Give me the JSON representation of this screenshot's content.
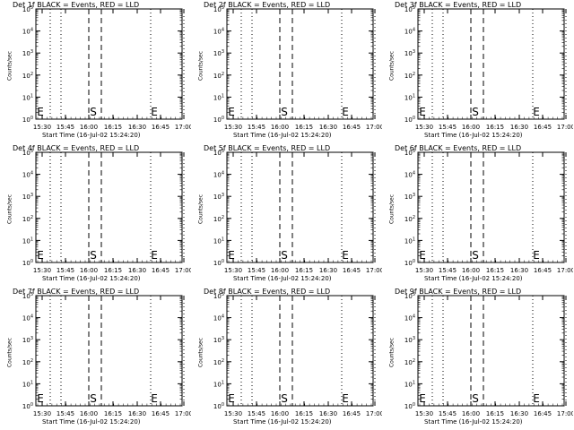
{
  "chart_data": [
    {
      "type": "line",
      "title": "Det 1f BLACK = Events, RED = LLD",
      "xlabel": "Start Time (16-Jul-02 15:24:20)",
      "ylabel": "Counts/sec",
      "xticks": [
        "15:30",
        "15:45",
        "16:00",
        "16:15",
        "16:30",
        "16:45",
        "17:00"
      ],
      "yticks": [
        "10^0",
        "10^1",
        "10^2",
        "10^3",
        "10^4",
        "10^5"
      ],
      "ylim": [
        1,
        100000
      ],
      "scale": "log",
      "markers": [
        "E",
        "S",
        "E"
      ],
      "series": []
    },
    {
      "type": "line",
      "title": "Det 2f BLACK = Events, RED = LLD",
      "xlabel": "Start Time (16-Jul-02 15:24:20)",
      "ylabel": "Counts/sec",
      "xticks": [
        "15:30",
        "15:45",
        "16:00",
        "16:15",
        "16:30",
        "16:45",
        "17:00"
      ],
      "yticks": [
        "10^0",
        "10^1",
        "10^2",
        "10^3",
        "10^4",
        "10^5"
      ],
      "ylim": [
        1,
        100000
      ],
      "scale": "log",
      "markers": [
        "E",
        "S",
        "E"
      ],
      "series": []
    },
    {
      "type": "line",
      "title": "Det 3f BLACK = Events, RED = LLD",
      "xlabel": "Start Time (16-Jul-02 15:24:20)",
      "ylabel": "Counts/sec",
      "xticks": [
        "15:30",
        "15:45",
        "16:00",
        "16:15",
        "16:30",
        "16:45",
        "17:00"
      ],
      "yticks": [
        "10^0",
        "10^1",
        "10^2",
        "10^3",
        "10^4",
        "10^5"
      ],
      "ylim": [
        1,
        100000
      ],
      "scale": "log",
      "markers": [
        "E",
        "S",
        "E"
      ],
      "series": []
    },
    {
      "type": "line",
      "title": "Det 4f BLACK = Events, RED = LLD",
      "xlabel": "Start Time (16-Jul-02 15:24:20)",
      "ylabel": "Counts/sec",
      "xticks": [
        "15:30",
        "15:45",
        "16:00",
        "16:15",
        "16:30",
        "16:45",
        "17:00"
      ],
      "yticks": [
        "10^0",
        "10^1",
        "10^2",
        "10^3",
        "10^4",
        "10^5"
      ],
      "ylim": [
        1,
        100000
      ],
      "scale": "log",
      "markers": [
        "E",
        "S",
        "E"
      ],
      "series": []
    },
    {
      "type": "line",
      "title": "Det 5f BLACK = Events, RED = LLD",
      "xlabel": "Start Time (16-Jul-02 15:24:20)",
      "ylabel": "Counts/sec",
      "xticks": [
        "15:30",
        "15:45",
        "16:00",
        "16:15",
        "16:30",
        "16:45",
        "17:00"
      ],
      "yticks": [
        "10^0",
        "10^1",
        "10^2",
        "10^3",
        "10^4",
        "10^5"
      ],
      "ylim": [
        1,
        100000
      ],
      "scale": "log",
      "markers": [
        "E",
        "S",
        "E"
      ],
      "series": []
    },
    {
      "type": "line",
      "title": "Det 6f BLACK = Events, RED = LLD",
      "xlabel": "Start Time (16-Jul-02 15:24:20)",
      "ylabel": "Counts/sec",
      "xticks": [
        "15:30",
        "15:45",
        "16:00",
        "16:15",
        "16:30",
        "16:45",
        "17:00"
      ],
      "yticks": [
        "10^0",
        "10^1",
        "10^2",
        "10^3",
        "10^4",
        "10^5"
      ],
      "ylim": [
        1,
        100000
      ],
      "scale": "log",
      "markers": [
        "E",
        "S",
        "E"
      ],
      "series": []
    },
    {
      "type": "line",
      "title": "Det 7f BLACK = Events, RED = LLD",
      "xlabel": "Start Time (16-Jul-02 15:24:20)",
      "ylabel": "Counts/sec",
      "xticks": [
        "15:30",
        "15:45",
        "16:00",
        "16:15",
        "16:30",
        "16:45",
        "17:00"
      ],
      "yticks": [
        "10^0",
        "10^1",
        "10^2",
        "10^3",
        "10^4",
        "10^5"
      ],
      "ylim": [
        1,
        100000
      ],
      "scale": "log",
      "markers": [
        "E",
        "S",
        "E"
      ],
      "series": []
    },
    {
      "type": "line",
      "title": "Det 8f BLACK = Events, RED = LLD",
      "xlabel": "Start Time (16-Jul-02 15:24:20)",
      "ylabel": "Counts/sec",
      "xticks": [
        "15:30",
        "15:45",
        "16:00",
        "16:15",
        "16:30",
        "16:45",
        "17:00"
      ],
      "yticks": [
        "10^0",
        "10^1",
        "10^2",
        "10^3",
        "10^4",
        "10^5"
      ],
      "ylim": [
        1,
        100000
      ],
      "scale": "log",
      "markers": [
        "E",
        "S",
        "E"
      ],
      "series": []
    },
    {
      "type": "line",
      "title": "Det 9f BLACK = Events, RED = LLD",
      "xlabel": "Start Time (16-Jul-02 15:24:20)",
      "ylabel": "Counts/sec",
      "xticks": [
        "15:30",
        "15:45",
        "16:00",
        "16:15",
        "16:30",
        "16:45",
        "17:00"
      ],
      "yticks": [
        "10^0",
        "10^1",
        "10^2",
        "10^3",
        "10^4",
        "10^5"
      ],
      "ylim": [
        1,
        100000
      ],
      "scale": "log",
      "markers": [
        "E",
        "S",
        "E"
      ],
      "series": []
    }
  ]
}
